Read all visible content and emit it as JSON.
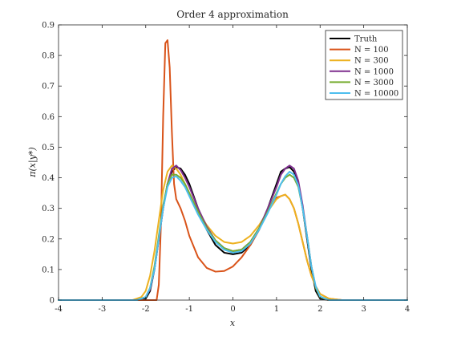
{
  "chart_data": {
    "type": "line",
    "title": "Order 4 approximation",
    "xlabel": "x",
    "ylabel": "π(x|y*)",
    "xlim": [
      -4,
      4
    ],
    "ylim": [
      0,
      0.9
    ],
    "xticks": [
      "-4",
      "-3",
      "-2",
      "-1",
      "0",
      "1",
      "2",
      "3",
      "4"
    ],
    "yticks": [
      "0",
      "0.1",
      "0.2",
      "0.3",
      "0.4",
      "0.5",
      "0.6",
      "0.7",
      "0.8",
      "0.9"
    ],
    "grid": false,
    "legend_position": "top-right",
    "series": [
      {
        "name": "Truth",
        "color": "#000000",
        "x": [
          -4,
          -2.2,
          -2.0,
          -1.9,
          -1.8,
          -1.7,
          -1.6,
          -1.5,
          -1.4,
          -1.3,
          -1.2,
          -1.1,
          -1.0,
          -0.8,
          -0.6,
          -0.4,
          -0.2,
          0.0,
          0.2,
          0.4,
          0.6,
          0.8,
          1.0,
          1.1,
          1.2,
          1.3,
          1.4,
          1.5,
          1.6,
          1.7,
          1.8,
          1.9,
          2.0,
          2.2,
          4
        ],
        "y": [
          0,
          0,
          0.005,
          0.03,
          0.1,
          0.2,
          0.3,
          0.38,
          0.42,
          0.435,
          0.43,
          0.41,
          0.38,
          0.3,
          0.23,
          0.18,
          0.155,
          0.15,
          0.155,
          0.18,
          0.23,
          0.3,
          0.38,
          0.42,
          0.43,
          0.435,
          0.42,
          0.38,
          0.3,
          0.2,
          0.1,
          0.03,
          0.005,
          0,
          0
        ]
      },
      {
        "name": "N = 100",
        "color": "#D95319",
        "x": [
          -4,
          -1.75,
          -1.7,
          -1.65,
          -1.6,
          -1.55,
          -1.5,
          -1.45,
          -1.4,
          -1.35,
          -1.3,
          -1.2,
          -1.1,
          -1.0,
          -0.8,
          -0.6,
          -0.4,
          -0.2,
          0.0,
          0.2,
          0.4,
          0.6,
          0.8,
          1.0,
          1.2,
          1.3,
          1.4,
          1.5,
          1.6,
          1.7,
          1.8,
          1.9,
          2.0,
          2.2,
          2.5,
          4
        ],
        "y": [
          0,
          0,
          0.05,
          0.25,
          0.6,
          0.84,
          0.85,
          0.76,
          0.55,
          0.38,
          0.33,
          0.3,
          0.26,
          0.21,
          0.14,
          0.105,
          0.093,
          0.095,
          0.11,
          0.14,
          0.18,
          0.23,
          0.29,
          0.335,
          0.345,
          0.33,
          0.3,
          0.25,
          0.19,
          0.13,
          0.08,
          0.045,
          0.02,
          0.005,
          0,
          0
        ]
      },
      {
        "name": "N = 300",
        "color": "#EDB120",
        "x": [
          -4,
          -2.3,
          -2.1,
          -2.0,
          -1.9,
          -1.8,
          -1.7,
          -1.6,
          -1.5,
          -1.4,
          -1.3,
          -1.2,
          -1.0,
          -0.8,
          -0.6,
          -0.4,
          -0.2,
          0.0,
          0.2,
          0.4,
          0.6,
          0.8,
          1.0,
          1.1,
          1.2,
          1.3,
          1.4,
          1.5,
          1.6,
          1.7,
          1.8,
          1.9,
          2.0,
          2.2,
          2.5,
          4
        ],
        "y": [
          0,
          0,
          0.01,
          0.03,
          0.08,
          0.16,
          0.26,
          0.36,
          0.42,
          0.44,
          0.43,
          0.41,
          0.35,
          0.29,
          0.245,
          0.21,
          0.19,
          0.185,
          0.19,
          0.21,
          0.245,
          0.29,
          0.33,
          0.34,
          0.345,
          0.33,
          0.3,
          0.25,
          0.19,
          0.13,
          0.08,
          0.045,
          0.02,
          0.005,
          0,
          0
        ]
      },
      {
        "name": "N = 1000",
        "color": "#7E2F8E",
        "x": [
          -4,
          -2.2,
          -2.0,
          -1.9,
          -1.8,
          -1.7,
          -1.6,
          -1.5,
          -1.4,
          -1.3,
          -1.2,
          -1.1,
          -1.0,
          -0.8,
          -0.6,
          -0.4,
          -0.2,
          0.0,
          0.2,
          0.4,
          0.6,
          0.8,
          1.0,
          1.1,
          1.2,
          1.3,
          1.4,
          1.5,
          1.6,
          1.7,
          1.8,
          1.9,
          2.0,
          2.2,
          4
        ],
        "y": [
          0,
          0,
          0.01,
          0.035,
          0.1,
          0.2,
          0.3,
          0.38,
          0.43,
          0.44,
          0.425,
          0.4,
          0.37,
          0.3,
          0.24,
          0.195,
          0.17,
          0.16,
          0.165,
          0.19,
          0.235,
          0.3,
          0.37,
          0.41,
          0.43,
          0.44,
          0.43,
          0.39,
          0.31,
          0.21,
          0.11,
          0.04,
          0.01,
          0,
          0
        ]
      },
      {
        "name": "N = 3000",
        "color": "#77AC30",
        "x": [
          -4,
          -2.2,
          -2.0,
          -1.9,
          -1.8,
          -1.7,
          -1.6,
          -1.5,
          -1.4,
          -1.3,
          -1.2,
          -1.1,
          -1.0,
          -0.8,
          -0.6,
          -0.4,
          -0.2,
          0.0,
          0.2,
          0.4,
          0.6,
          0.8,
          1.0,
          1.1,
          1.2,
          1.3,
          1.4,
          1.5,
          1.6,
          1.7,
          1.8,
          1.9,
          2.0,
          2.2,
          4
        ],
        "y": [
          0,
          0,
          0.01,
          0.04,
          0.11,
          0.21,
          0.31,
          0.38,
          0.41,
          0.41,
          0.4,
          0.38,
          0.35,
          0.29,
          0.235,
          0.195,
          0.17,
          0.16,
          0.165,
          0.19,
          0.235,
          0.29,
          0.35,
          0.38,
          0.4,
          0.41,
          0.4,
          0.37,
          0.3,
          0.21,
          0.11,
          0.04,
          0.01,
          0,
          0
        ]
      },
      {
        "name": "N = 10000",
        "color": "#4DBEEE",
        "x": [
          -4,
          -2.2,
          -2.0,
          -1.9,
          -1.8,
          -1.7,
          -1.6,
          -1.5,
          -1.4,
          -1.3,
          -1.2,
          -1.1,
          -1.0,
          -0.8,
          -0.6,
          -0.4,
          -0.2,
          0.0,
          0.2,
          0.4,
          0.6,
          0.8,
          1.0,
          1.1,
          1.2,
          1.3,
          1.4,
          1.5,
          1.6,
          1.7,
          1.8,
          1.9,
          2.0,
          2.2,
          4
        ],
        "y": [
          0,
          0,
          0.01,
          0.04,
          0.1,
          0.2,
          0.3,
          0.37,
          0.4,
          0.405,
          0.39,
          0.37,
          0.34,
          0.28,
          0.23,
          0.19,
          0.165,
          0.155,
          0.16,
          0.185,
          0.23,
          0.285,
          0.345,
          0.38,
          0.405,
          0.42,
          0.41,
          0.375,
          0.3,
          0.21,
          0.11,
          0.045,
          0.012,
          0,
          0
        ]
      }
    ]
  }
}
